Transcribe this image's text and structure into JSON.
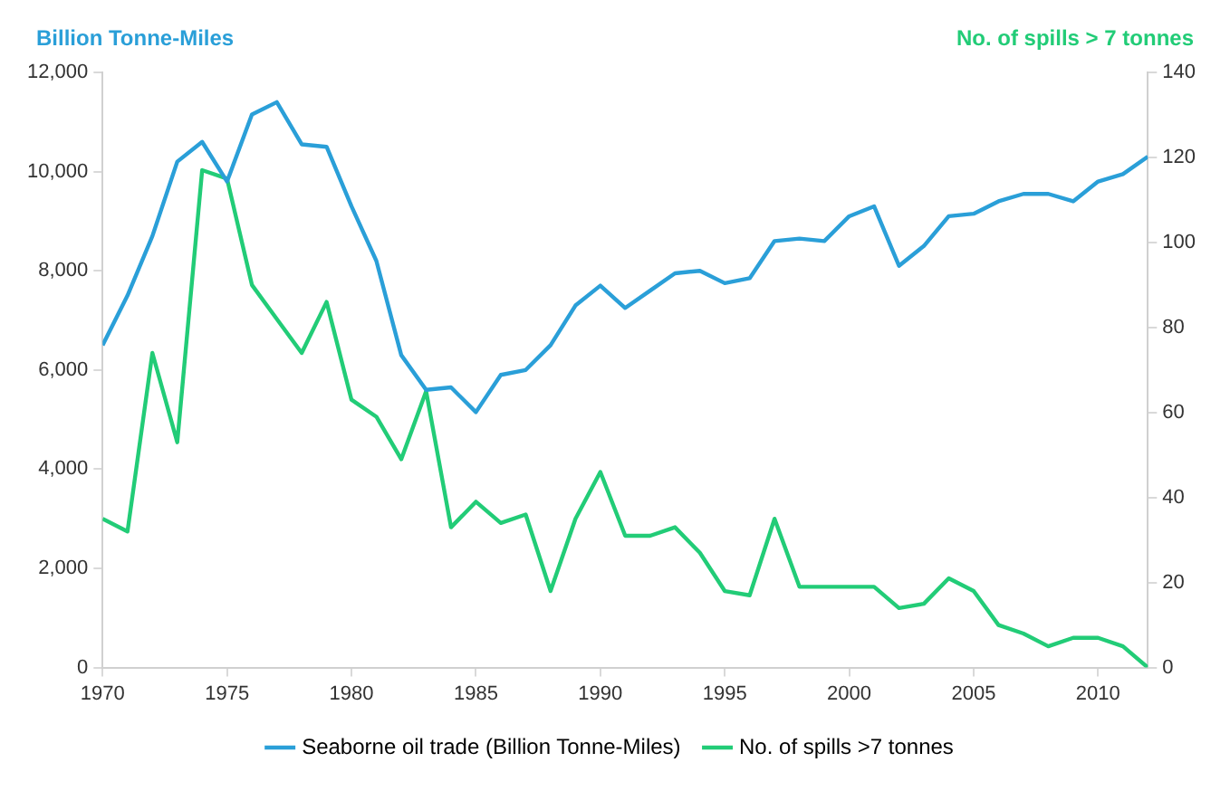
{
  "chart_data": {
    "type": "line",
    "ylabel": "Billion Tonne-Miles",
    "y2label": "No. of spills > 7 tonnes",
    "x": [
      1970,
      1971,
      1972,
      1973,
      1974,
      1975,
      1976,
      1977,
      1978,
      1979,
      1980,
      1981,
      1982,
      1983,
      1984,
      1985,
      1986,
      1987,
      1988,
      1989,
      1990,
      1991,
      1992,
      1993,
      1994,
      1995,
      1996,
      1997,
      1998,
      1999,
      2000,
      2001,
      2002,
      2003,
      2004,
      2005,
      2006,
      2007,
      2008,
      2009,
      2010,
      2011,
      2012
    ],
    "series": [
      {
        "name": "Seaborne oil trade (Billion Tonne-Miles)",
        "color": "#2a9fd8",
        "values": [
          6500,
          7500,
          8700,
          10200,
          10600,
          9800,
          11150,
          11400,
          10550,
          10500,
          9300,
          8200,
          6300,
          5600,
          5650,
          5150,
          5900,
          6000,
          6500,
          7300,
          7700,
          7250,
          7600,
          7950,
          8000,
          7750,
          7850,
          8600,
          8650,
          8600,
          9100,
          9300,
          8100,
          8500,
          9100,
          9150,
          9400,
          9550,
          9550,
          9400,
          9800,
          9950,
          10300
        ]
      },
      {
        "name": "No. of spills >7 tonnes",
        "color": "#22cc77",
        "axis": "y2",
        "values": [
          35,
          32,
          74,
          53,
          117,
          115,
          90,
          82,
          74,
          86,
          63,
          59,
          49,
          65,
          33,
          39,
          34,
          36,
          18,
          35,
          46,
          31,
          31,
          33,
          27,
          18,
          17,
          35,
          19,
          19,
          19,
          19,
          14,
          15,
          21,
          18,
          10,
          8,
          5,
          7,
          7,
          5,
          0
        ]
      }
    ],
    "xlim": [
      1970,
      2012
    ],
    "xticks": [
      1970,
      1975,
      1980,
      1985,
      1990,
      1995,
      2000,
      2005,
      2010
    ],
    "ylim": [
      0,
      12000
    ],
    "yticks": [
      0,
      {
        "value": 2000,
        "label": "2,000"
      },
      {
        "value": 4000,
        "label": "4,000"
      },
      {
        "value": 6000,
        "label": "6,000"
      },
      {
        "value": 8000,
        "label": "8,000"
      },
      {
        "value": 10000,
        "label": "10,000"
      },
      {
        "value": 12000,
        "label": "12,000"
      }
    ],
    "y2lim": [
      0,
      140
    ],
    "y2ticks": [
      0,
      20,
      40,
      60,
      80,
      100,
      120,
      140
    ],
    "grid": false,
    "legend": "bottom",
    "marker": "none",
    "line_style": "solid"
  }
}
